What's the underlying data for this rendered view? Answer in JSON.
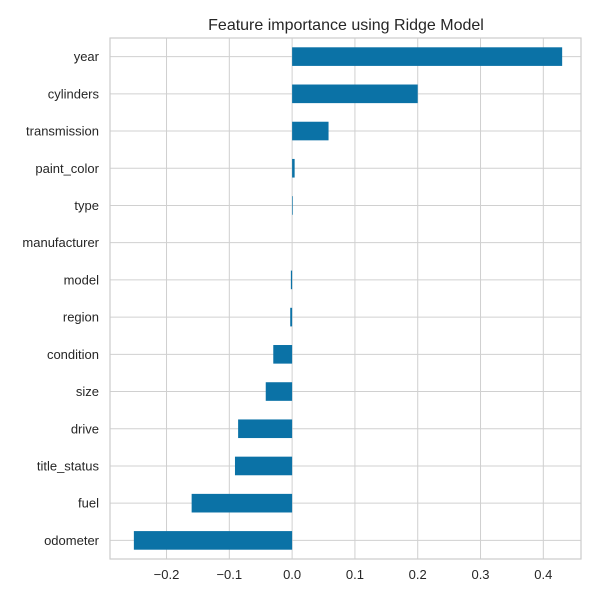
{
  "chart_data": {
    "type": "bar",
    "orientation": "horizontal",
    "title": "Feature importance using Ridge Model",
    "xlabel": "",
    "ylabel": "",
    "xlim": [
      -0.29,
      0.46
    ],
    "xticks": [
      -0.2,
      -0.1,
      0.0,
      0.1,
      0.2,
      0.3,
      0.4
    ],
    "xtick_labels": [
      "−0.2",
      "−0.1",
      "0.0",
      "0.1",
      "0.2",
      "0.3",
      "0.4"
    ],
    "grid": true,
    "bar_color": "#0b72a6",
    "grid_color": "#d0d0d0",
    "axes_edge_color": "#cccccc",
    "categories": [
      "year",
      "cylinders",
      "transmission",
      "paint_color",
      "type",
      "manufacturer",
      "model",
      "region",
      "condition",
      "size",
      "drive",
      "title_status",
      "fuel",
      "odometer"
    ],
    "values": [
      0.43,
      0.2,
      0.058,
      0.004,
      0.001,
      0.0,
      -0.002,
      -0.003,
      -0.03,
      -0.042,
      -0.086,
      -0.091,
      -0.16,
      -0.252
    ]
  }
}
